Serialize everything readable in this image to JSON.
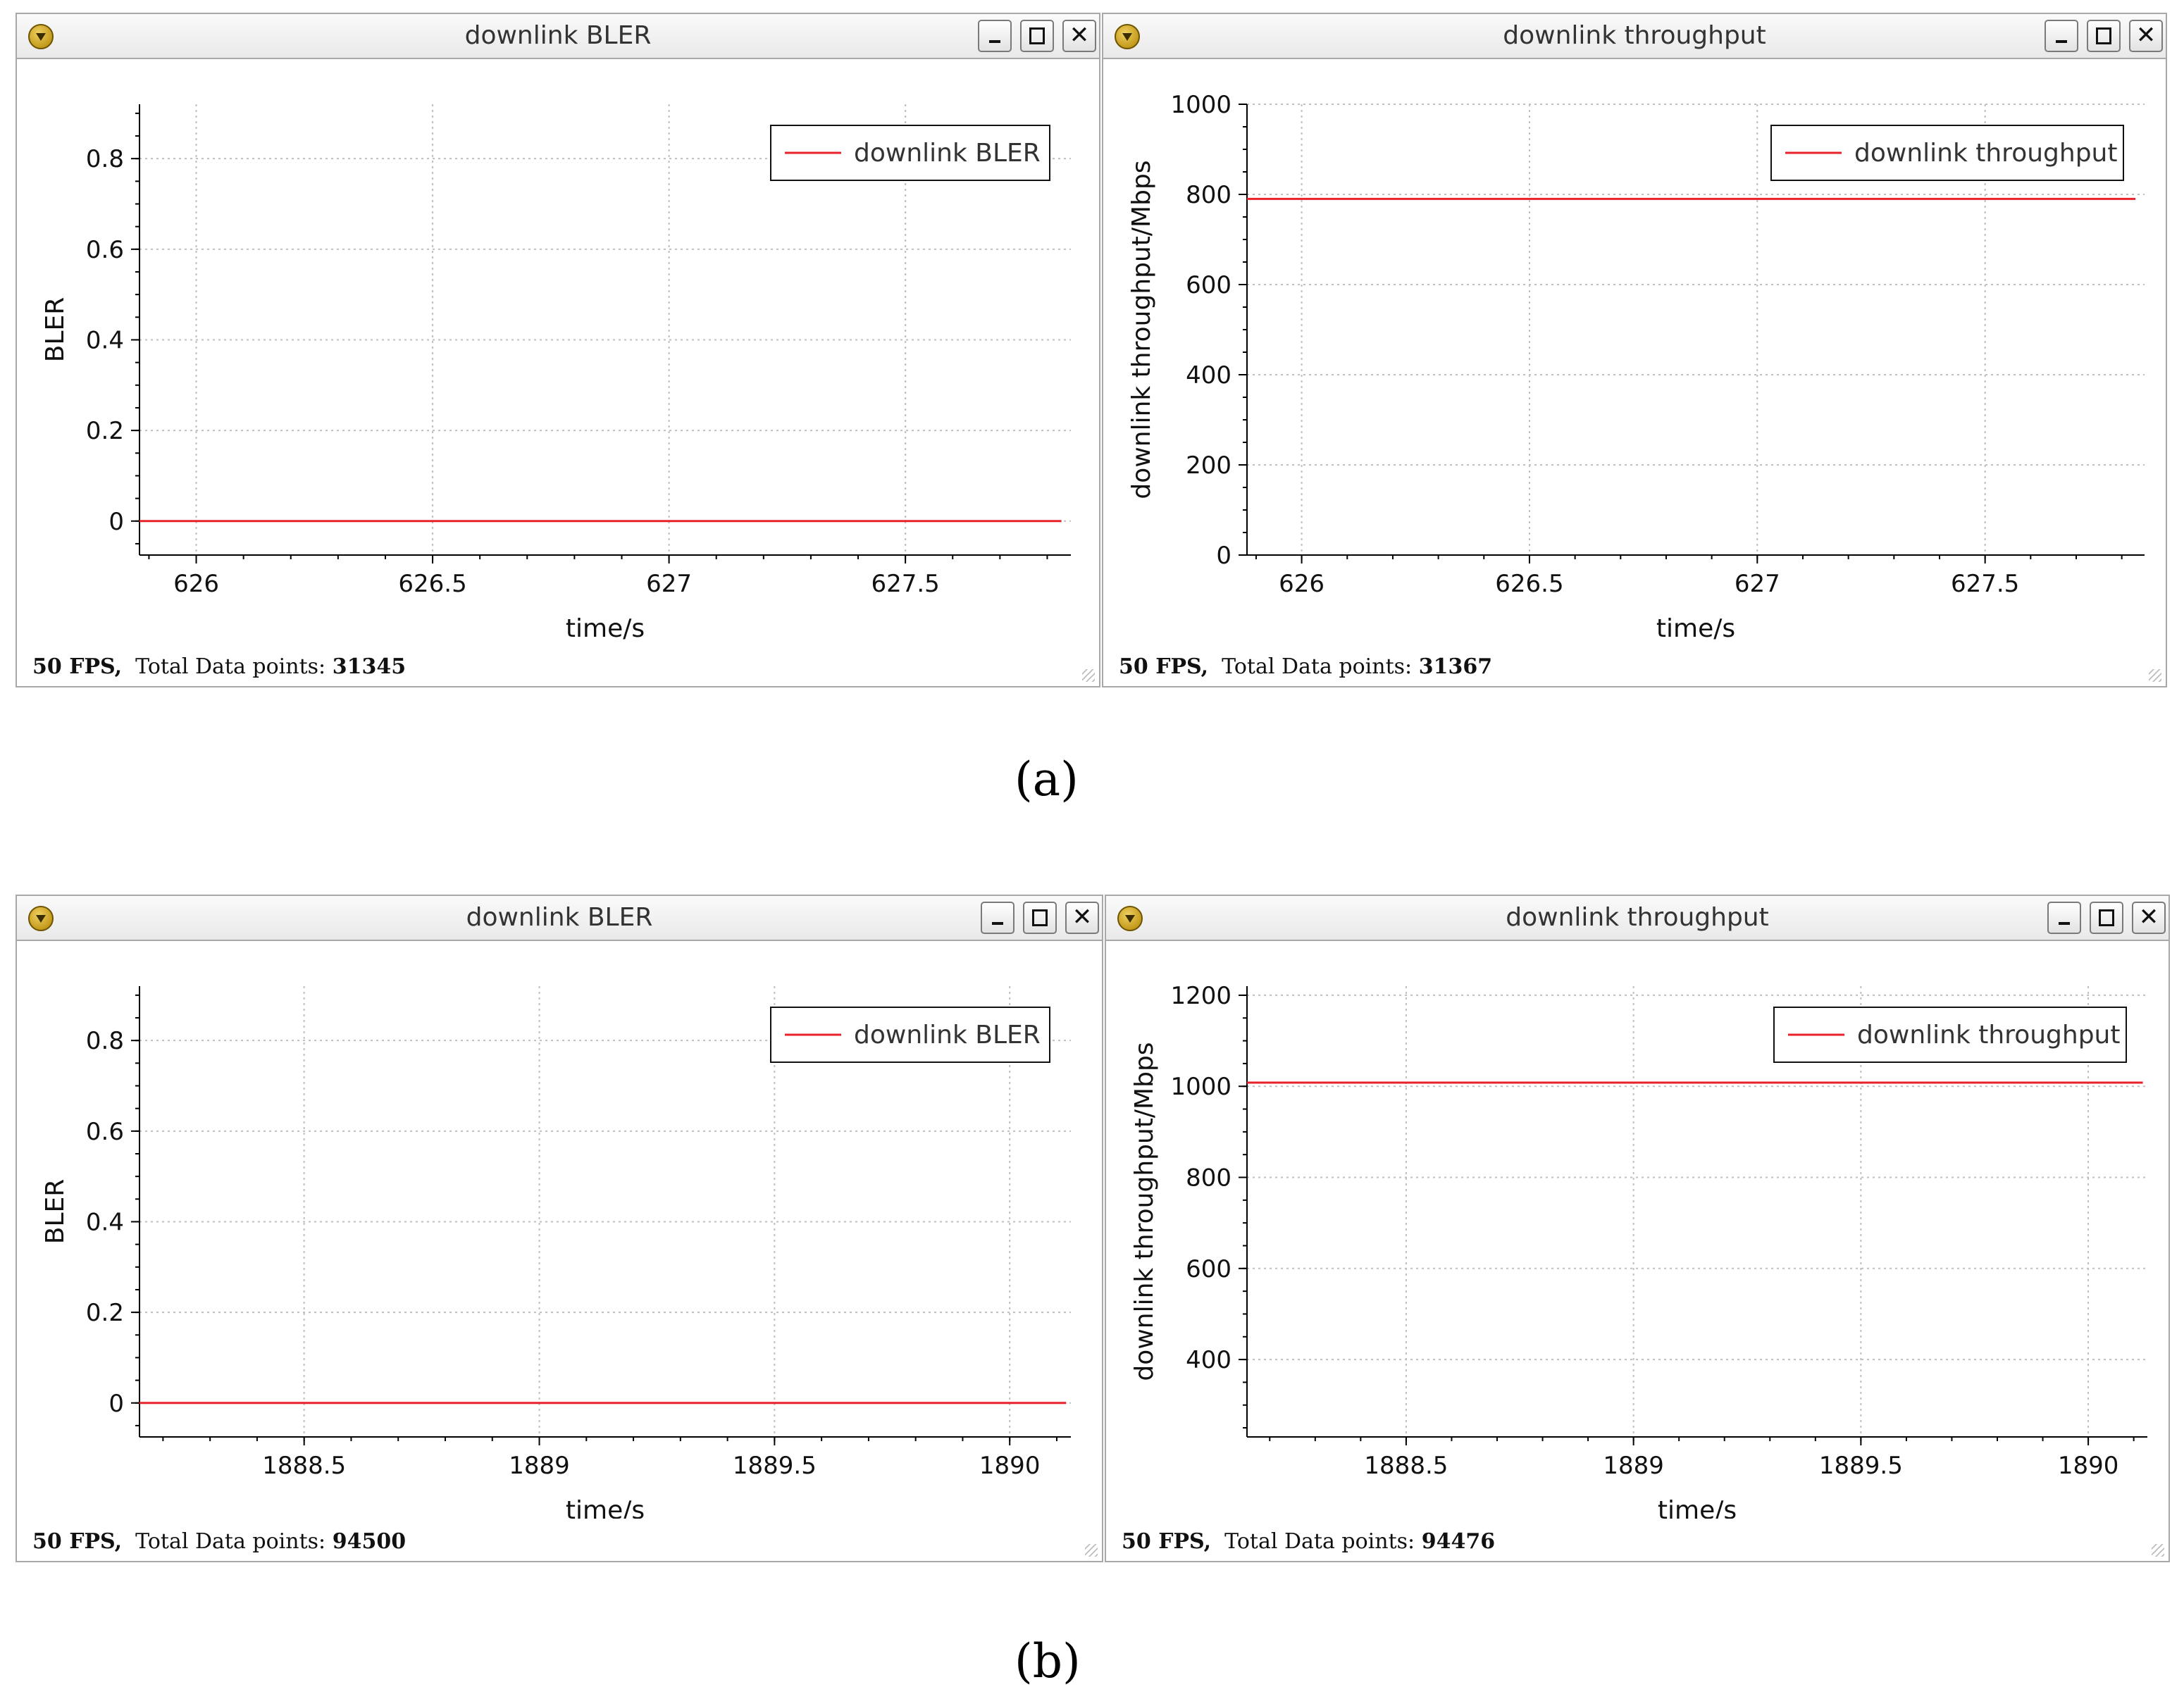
{
  "captions": {
    "a": "(a)",
    "b": "(b)"
  },
  "status": {
    "fps_text": "50 FPS,",
    "points_label": "Total Data points:"
  },
  "colors": {
    "line": "#e8222a",
    "grid": "#bfbfbf",
    "axis": "#000000"
  },
  "icons": {
    "app": "funnel-icon",
    "min": "minimize-icon",
    "max": "maximize-icon",
    "close": "close-icon"
  },
  "chart_data": [
    {
      "id": "a1",
      "type": "line",
      "window_title": "downlink BLER",
      "xlabel": "time/s",
      "ylabel": "BLER",
      "xlim": [
        625.88,
        627.85
      ],
      "ylim": [
        -0.075,
        0.92
      ],
      "xticks": [
        626,
        626.5,
        627,
        627.5
      ],
      "xtick_labels": [
        "626",
        "626.5",
        "627",
        "627.5"
      ],
      "yticks": [
        0,
        0.2,
        0.4,
        0.6,
        0.8
      ],
      "ytick_labels": [
        "0",
        "0.2",
        "0.4",
        "0.6",
        "0.8"
      ],
      "legend": "downlink BLER",
      "legend_position": "top-right",
      "series": [
        {
          "name": "downlink BLER",
          "x": [
            625.88,
            627.83
          ],
          "y": [
            0,
            0
          ]
        }
      ],
      "status_points": "31345"
    },
    {
      "id": "a2",
      "type": "line",
      "window_title": "downlink throughput",
      "xlabel": "time/s",
      "ylabel": "downlink throughput/Mbps",
      "xlim": [
        625.88,
        627.85
      ],
      "ylim": [
        0,
        1000
      ],
      "xticks": [
        626,
        626.5,
        627,
        627.5
      ],
      "xtick_labels": [
        "626",
        "626.5",
        "627",
        "627.5"
      ],
      "yticks": [
        0,
        200,
        400,
        600,
        800,
        1000
      ],
      "ytick_labels": [
        "0",
        "200",
        "400",
        "600",
        "800",
        "1000"
      ],
      "legend": "downlink throughput",
      "legend_position": "top-right",
      "series": [
        {
          "name": "downlink throughput",
          "x": [
            625.88,
            627.83
          ],
          "y": [
            790,
            790
          ]
        }
      ],
      "status_points": "31367"
    },
    {
      "id": "b1",
      "type": "line",
      "window_title": "downlink BLER",
      "xlabel": "time/s",
      "ylabel": "BLER",
      "xlim": [
        1888.15,
        1890.13
      ],
      "ylim": [
        -0.075,
        0.92
      ],
      "xticks": [
        1888.5,
        1889,
        1889.5,
        1890
      ],
      "xtick_labels": [
        "1888.5",
        "1889",
        "1889.5",
        "1890"
      ],
      "yticks": [
        0,
        0.2,
        0.4,
        0.6,
        0.8
      ],
      "ytick_labels": [
        "0",
        "0.2",
        "0.4",
        "0.6",
        "0.8"
      ],
      "legend": "downlink BLER",
      "legend_position": "top-right",
      "series": [
        {
          "name": "downlink BLER",
          "x": [
            1888.15,
            1890.12
          ],
          "y": [
            0,
            0
          ]
        }
      ],
      "status_points": "94500"
    },
    {
      "id": "b2",
      "type": "line",
      "window_title": "downlink throughput",
      "xlabel": "time/s",
      "ylabel": "downlink throughput/Mbps",
      "xlim": [
        1888.15,
        1890.13
      ],
      "ylim": [
        230,
        1220
      ],
      "xticks": [
        1888.5,
        1889,
        1889.5,
        1890
      ],
      "xtick_labels": [
        "1888.5",
        "1889",
        "1889.5",
        "1890"
      ],
      "yticks": [
        400,
        600,
        800,
        1000,
        1200
      ],
      "ytick_labels": [
        "400",
        "600",
        "800",
        "1000",
        "1200"
      ],
      "legend": "downlink throughput",
      "legend_position": "top-right",
      "series": [
        {
          "name": "downlink throughput",
          "x": [
            1888.15,
            1890.12
          ],
          "y": [
            1008,
            1008
          ]
        }
      ],
      "status_points": "94476"
    }
  ]
}
